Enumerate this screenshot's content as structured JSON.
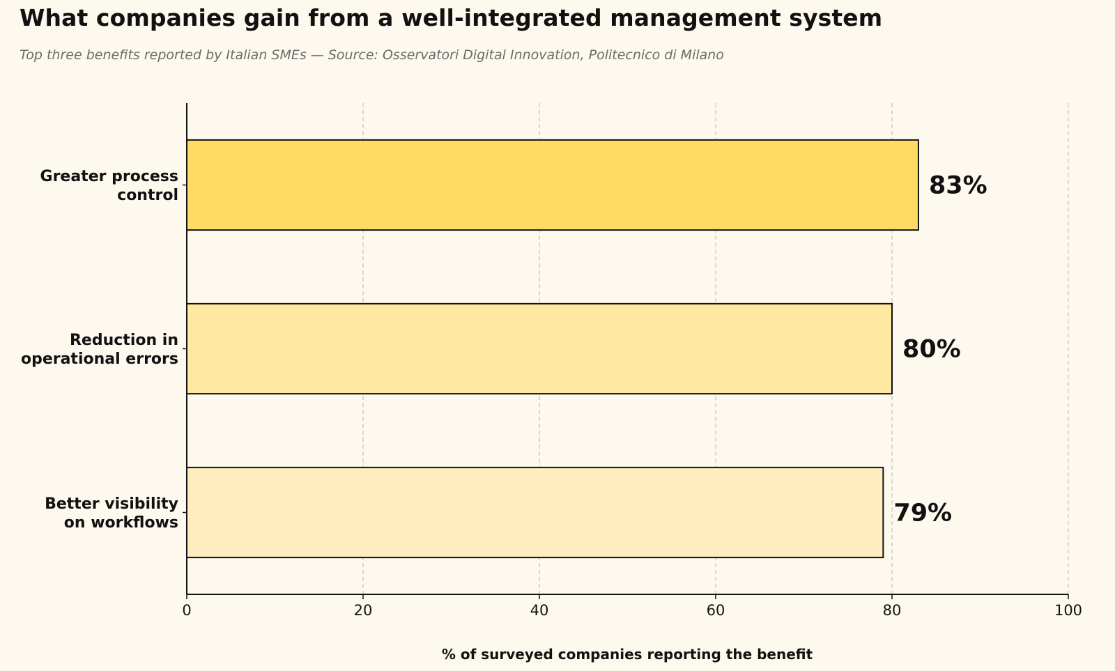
{
  "chart_data": {
    "type": "bar",
    "orientation": "horizontal",
    "title": "What companies gain from a well-integrated management system",
    "subtitle": "Top three benefits reported by Italian SMEs — Source: Osservatori Digital Innovation, Politecnico di Milano",
    "xlabel": "% of surveyed companies reporting the benefit",
    "ylabel": "",
    "xlim": [
      0,
      100
    ],
    "xticks": [
      0,
      20,
      40,
      60,
      80,
      100
    ],
    "grid": "vertical dashed",
    "categories": [
      [
        "Greater process",
        "control"
      ],
      [
        "Reduction in",
        "operational errors"
      ],
      [
        "Better visibility",
        "on workflows"
      ]
    ],
    "values": [
      83,
      80,
      79
    ],
    "value_labels": [
      "83%",
      "80%",
      "79%"
    ],
    "colors": [
      "#ffdb66",
      "#ffe9a0",
      "#ffedbf"
    ],
    "edge_color": "#111111"
  }
}
